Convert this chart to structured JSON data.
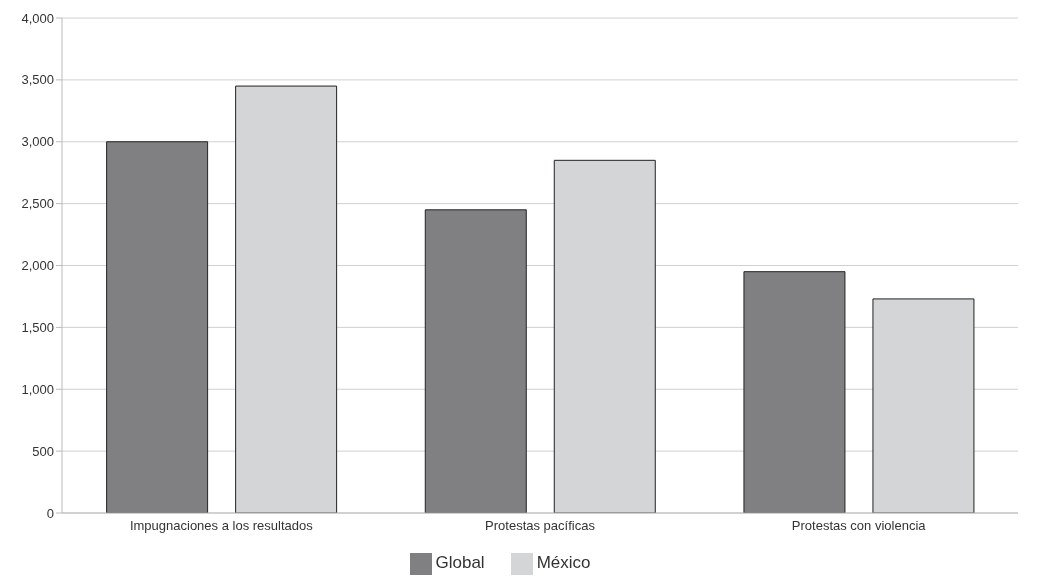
{
  "chart_data": {
    "type": "bar",
    "categories": [
      "Impugnaciones a los resultados",
      "Protestas pacíficas",
      "Protestas con violencia"
    ],
    "series": [
      {
        "name": "Global",
        "color": "#808083",
        "values": [
          3000,
          2450,
          1950
        ]
      },
      {
        "name": "México",
        "color": "#d4d5d7",
        "values": [
          3450,
          2850,
          1730
        ]
      }
    ],
    "ylim": [
      0,
      4000
    ],
    "yticks": [
      0,
      500,
      {
        "value": 1000,
        "label": "1,000"
      },
      {
        "value": 1500,
        "label": "1,500"
      },
      {
        "value": 2000,
        "label": "2,000"
      },
      {
        "value": 2500,
        "label": "2,500"
      },
      {
        "value": 3000,
        "label": "3,000"
      },
      {
        "value": 3500,
        "label": "3,500"
      },
      {
        "value": 4000,
        "label": "4,000"
      }
    ],
    "grid": "y",
    "legend": "bottom"
  }
}
